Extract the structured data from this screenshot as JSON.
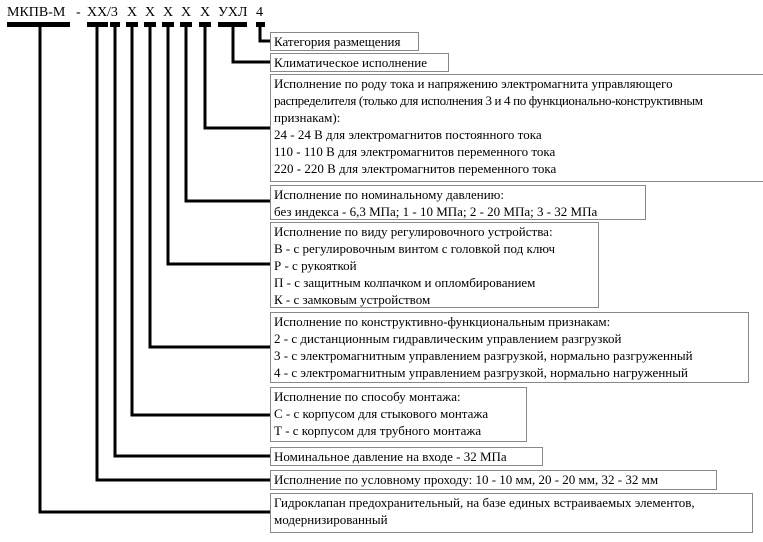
{
  "code": {
    "prefix": "МКПВ-М",
    "dash": "-",
    "xx": "ХХ",
    "slash3": "/3",
    "x1": "Х",
    "x2": "Х",
    "x3": "Х",
    "x4": "Х",
    "x5": "Х",
    "climate": "УХЛ",
    "category": "4"
  },
  "boxes": {
    "category": {
      "lines": [
        "Категория размещения"
      ]
    },
    "climate": {
      "lines": [
        "Климатическое исполнение"
      ]
    },
    "voltage": {
      "lines": [
        "Исполнение по роду тока и напряжению электромагнита управляющего",
        "распределителя (только для исполнения 3 и 4 по функционально-конструктивным",
        "признакам):",
        "24 - 24 В для электромагнитов постоянного тока",
        "110 - 110 В для электромагнитов переменного тока",
        "220 - 220 В для электромагнитов переменного тока"
      ]
    },
    "pressure": {
      "lines": [
        "Исполнение по номинальному давлению:",
        "без индекса - 6,3 МПа; 1 - 10 МПа; 2 - 20 МПа; 3 - 32 МПа"
      ]
    },
    "adjust": {
      "lines": [
        "Исполнение по виду регулировочного устройства:",
        "В - с регулировочным винтом с головкой под ключ",
        "Р - с рукояткой",
        "П - с защитным колпачком и опломбированием",
        "К - с замковым устройством"
      ]
    },
    "design": {
      "lines": [
        "Исполнение по конструктивно-функциональным признакам:",
        "2 - с дистанционным гидравлическим управлением разгрузкой",
        "3 - с электромагнитным управлением разгрузкой, нормально разгруженный",
        "4 - с электромагнитным управлением разгрузкой, нормально нагруженный"
      ]
    },
    "mounting": {
      "lines": [
        "Исполнение по способу монтажа:",
        "С - с корпусом для стыкового монтажа",
        "Т - с корпусом для трубного монтажа"
      ]
    },
    "inlet": {
      "lines": [
        "Номинальное давление на входе - 32 МПа"
      ]
    },
    "bore": {
      "lines": [
        "Исполнение по условному проходу: 10 - 10 мм, 20 - 20 мм, 32 - 32 мм"
      ]
    },
    "name": {
      "lines": [
        "Гидроклапан предохранительный, на базе единых встраиваемых элементов,",
        "модернизированный"
      ]
    }
  }
}
